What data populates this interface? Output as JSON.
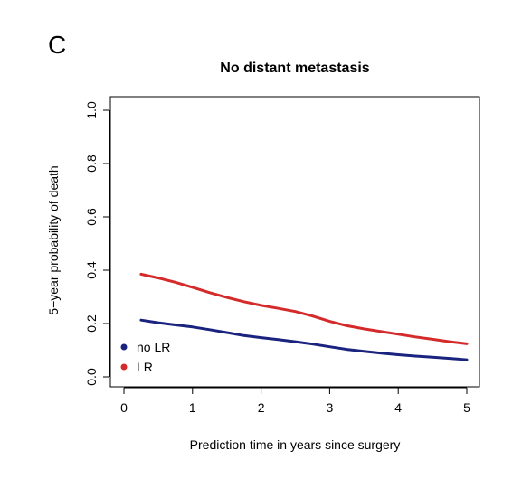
{
  "panel_label": "C",
  "chart_data": {
    "type": "line",
    "title": "No distant metastasis",
    "xlabel": "Prediction time in years since surgery",
    "ylabel": "5−year probability of death",
    "xlim": [
      0,
      5
    ],
    "ylim": [
      0,
      1
    ],
    "xticks": [
      0,
      1,
      2,
      3,
      4,
      5
    ],
    "yticks": [
      "0.0",
      "0.2",
      "0.4",
      "0.6",
      "0.8",
      "1.0"
    ],
    "legend_position": "bottom-left",
    "grid": false,
    "series": [
      {
        "name": "no LR",
        "color": "#1a237e",
        "x": [
          0.25,
          0.5,
          0.75,
          1.0,
          1.25,
          1.5,
          1.75,
          2.0,
          2.25,
          2.5,
          2.75,
          3.0,
          3.25,
          3.5,
          3.75,
          4.0,
          4.25,
          4.5,
          4.75,
          5.0
        ],
        "y": [
          0.213,
          0.203,
          0.195,
          0.187,
          0.177,
          0.166,
          0.155,
          0.147,
          0.14,
          0.132,
          0.123,
          0.113,
          0.103,
          0.096,
          0.089,
          0.083,
          0.078,
          0.074,
          0.069,
          0.064
        ]
      },
      {
        "name": "LR",
        "color": "#d42a2a",
        "x": [
          0.25,
          0.5,
          0.75,
          1.0,
          1.25,
          1.5,
          1.75,
          2.0,
          2.25,
          2.5,
          2.75,
          3.0,
          3.25,
          3.5,
          3.75,
          4.0,
          4.25,
          4.5,
          4.75,
          5.0
        ],
        "y": [
          0.385,
          0.371,
          0.355,
          0.336,
          0.316,
          0.298,
          0.282,
          0.268,
          0.257,
          0.245,
          0.228,
          0.208,
          0.192,
          0.18,
          0.17,
          0.16,
          0.15,
          0.141,
          0.132,
          0.124
        ]
      }
    ]
  }
}
